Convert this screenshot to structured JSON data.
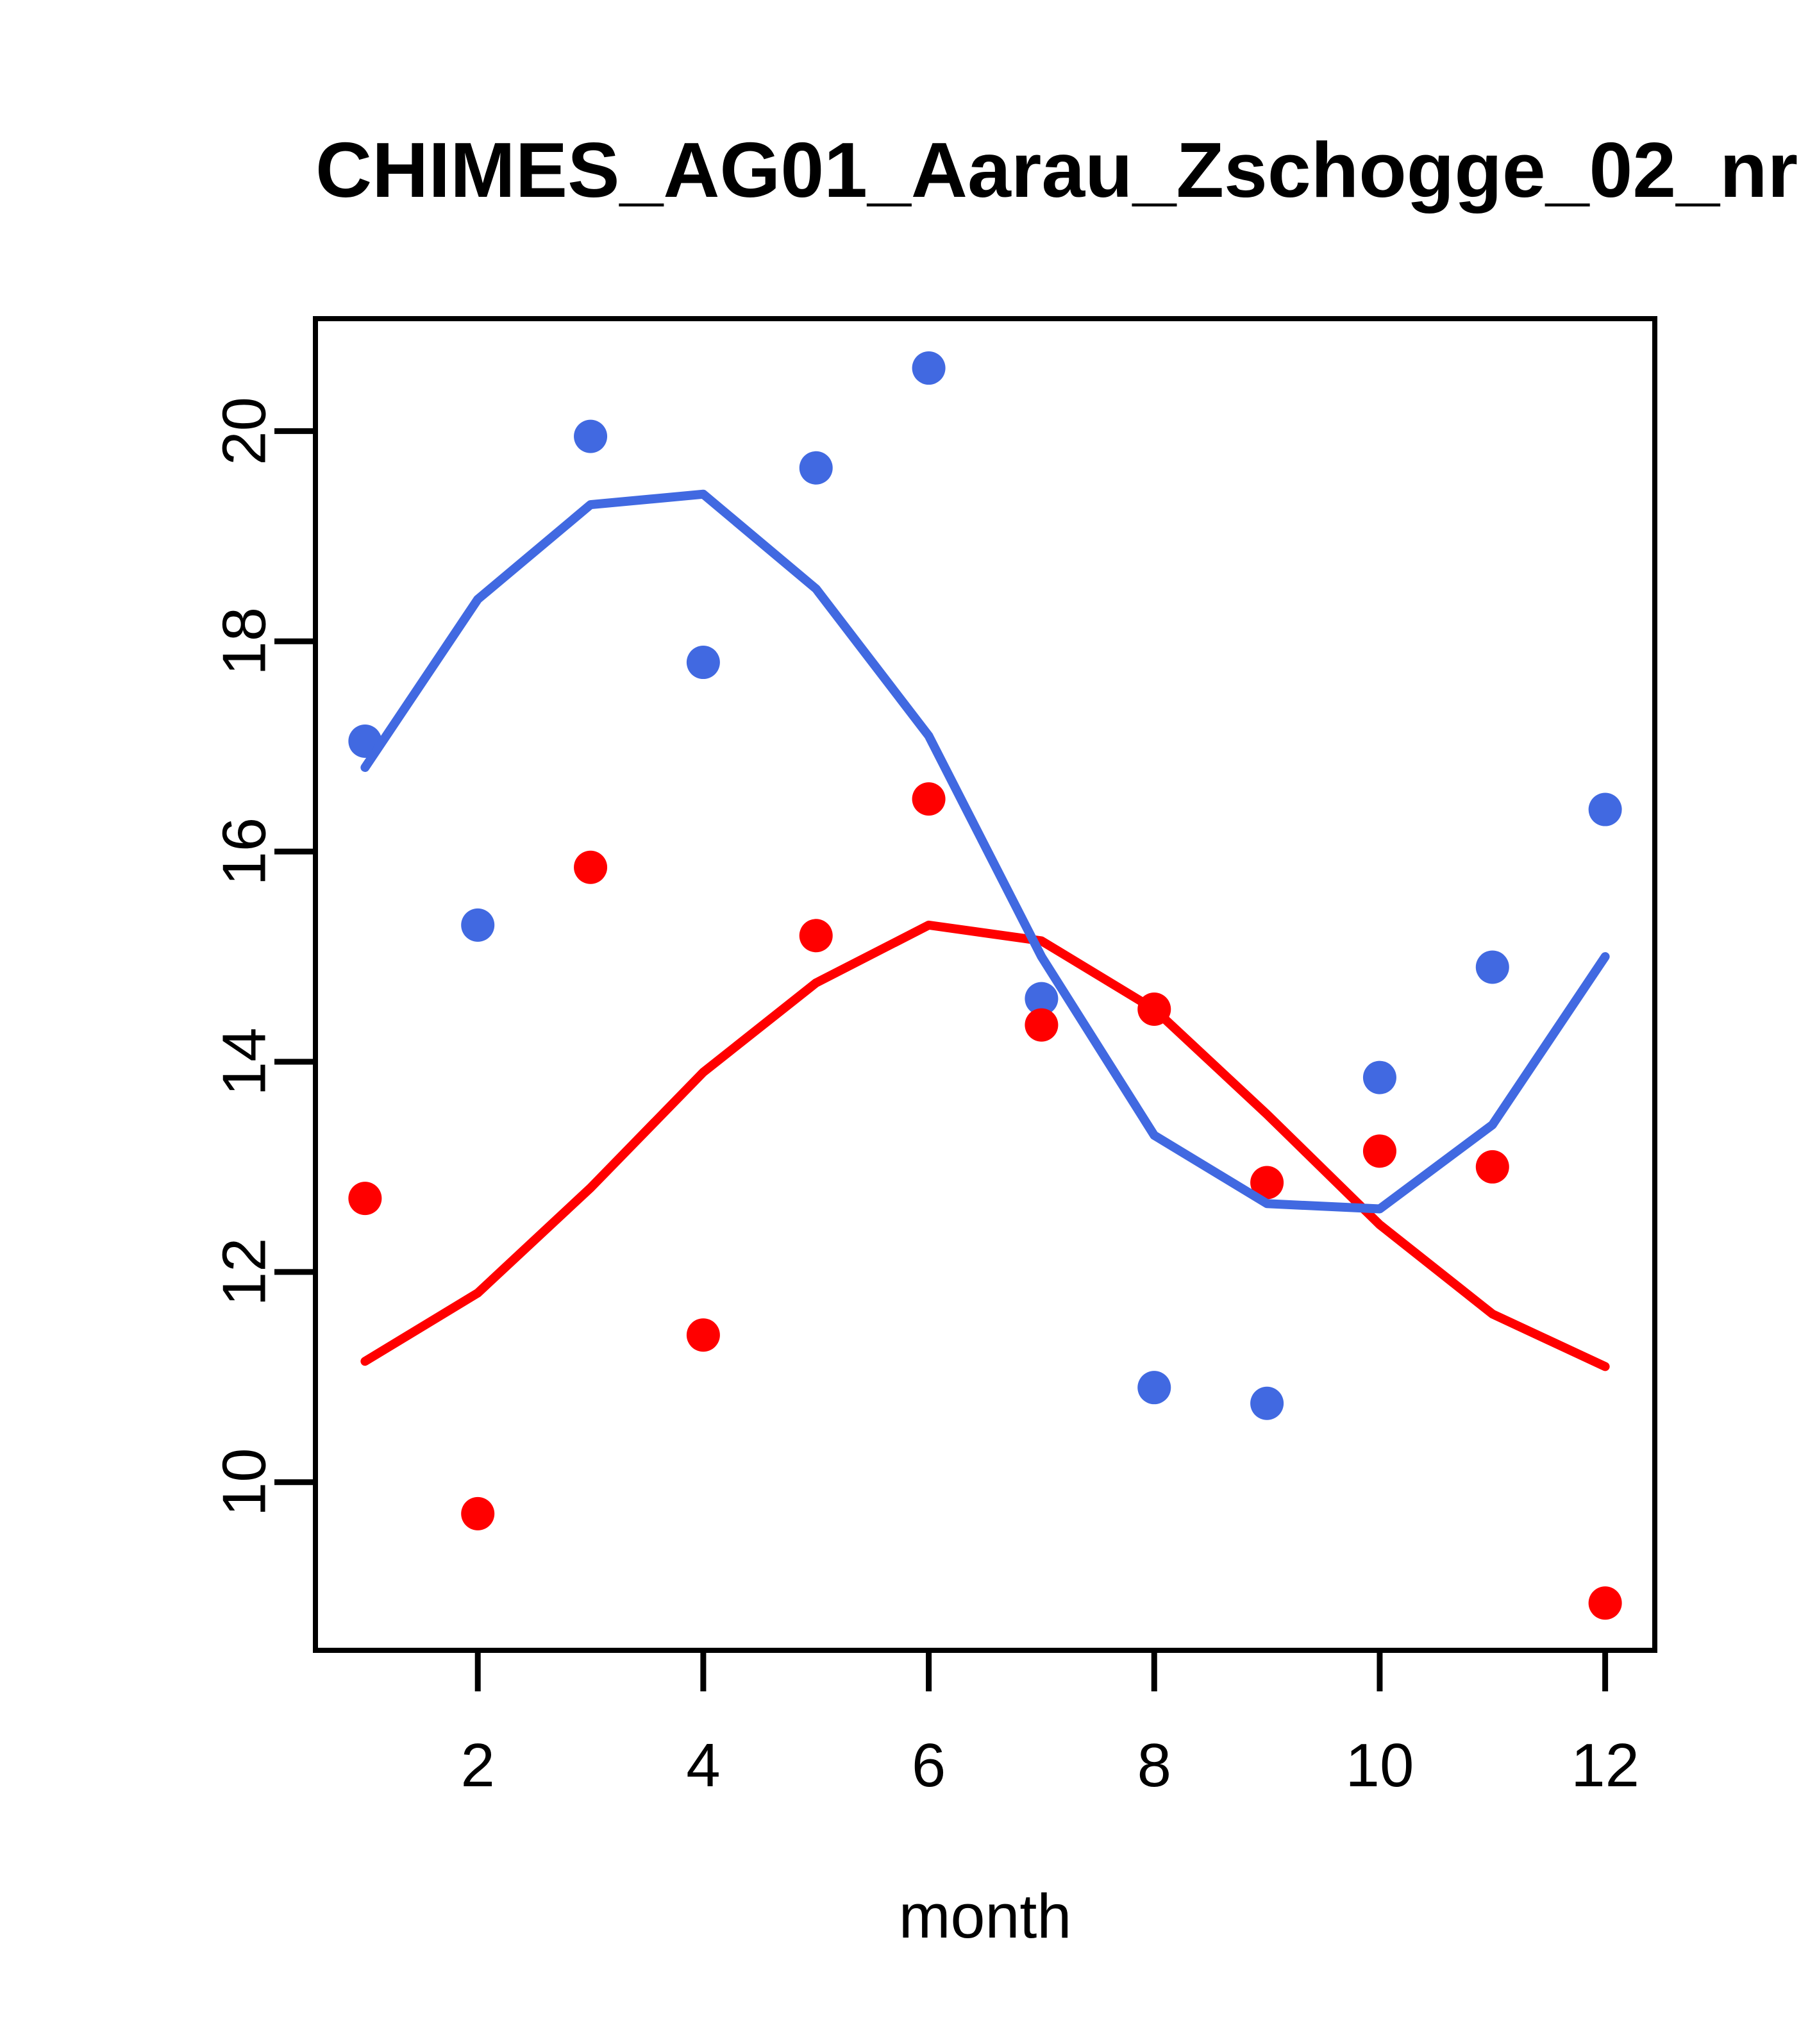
{
  "figure": {
    "title": "CHIMES_AG01_Aarau_Zschogge_02_nr",
    "xlabel": "month"
  },
  "chart_data": {
    "type": "scatter",
    "title": "CHIMES_AG01_Aarau_Zschogge_02_nr",
    "xlabel": "month",
    "ylabel": "",
    "xlim": [
      0.56,
      12.44
    ],
    "ylim": [
      8.4,
      21.07
    ],
    "grid": false,
    "box": true,
    "legend_position": "none",
    "x": [
      1,
      2,
      3,
      4,
      5,
      6,
      7,
      8,
      9,
      10,
      11,
      12
    ],
    "x_ticks": [
      2,
      4,
      6,
      8,
      10,
      12
    ],
    "y_ticks": [
      10,
      12,
      14,
      16,
      18,
      20
    ],
    "colors": {
      "blue": "#4169E1",
      "red": "#FF0000",
      "axis": "#000000"
    },
    "series": [
      {
        "name": "blue_points",
        "kind": "points",
        "color_key": "blue",
        "values": [
          17.05,
          15.3,
          19.95,
          17.8,
          19.65,
          20.6,
          14.6,
          10.9,
          10.75,
          13.85,
          14.9,
          16.4
        ]
      },
      {
        "name": "red_points",
        "kind": "points",
        "color_key": "red",
        "values": [
          12.7,
          9.7,
          15.85,
          11.4,
          15.2,
          16.5,
          14.35,
          14.5,
          12.85,
          13.15,
          13.0,
          8.85
        ]
      },
      {
        "name": "red_smooth_line",
        "kind": "line",
        "color_key": "red",
        "values": [
          11.15,
          11.8,
          12.8,
          13.9,
          14.75,
          15.3,
          15.15,
          14.5,
          13.5,
          12.45,
          11.6,
          11.1
        ]
      },
      {
        "name": "blue_smooth_line",
        "kind": "line",
        "color_key": "blue",
        "values": [
          16.8,
          18.4,
          19.3,
          19.4,
          18.5,
          17.1,
          15.0,
          13.3,
          12.65,
          12.6,
          13.4,
          15.0
        ]
      }
    ]
  }
}
